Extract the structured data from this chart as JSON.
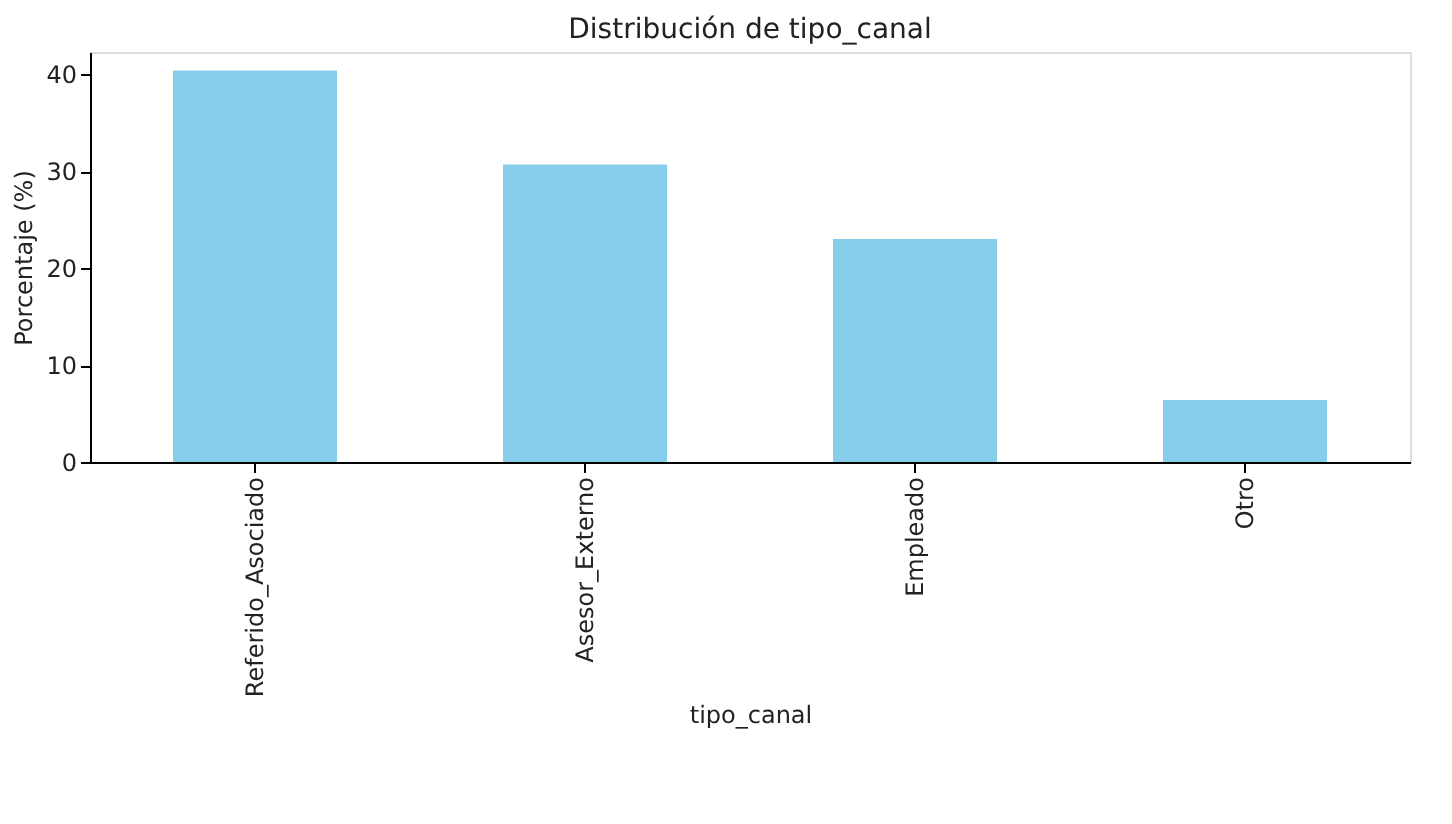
{
  "chart_data": {
    "type": "bar",
    "title": "Distribución de tipo_canal",
    "xlabel": "tipo_canal",
    "ylabel": "Porcentaje (%)",
    "categories": [
      "Referido_Asociado",
      "Asesor_Externo",
      "Empleado",
      "Otro"
    ],
    "values": [
      40.4,
      30.7,
      23.0,
      6.4
    ],
    "color": "#87ceeb",
    "ylim": [
      0,
      42.3
    ],
    "yticks": [
      0,
      10,
      20,
      30,
      40
    ],
    "grid": false
  }
}
